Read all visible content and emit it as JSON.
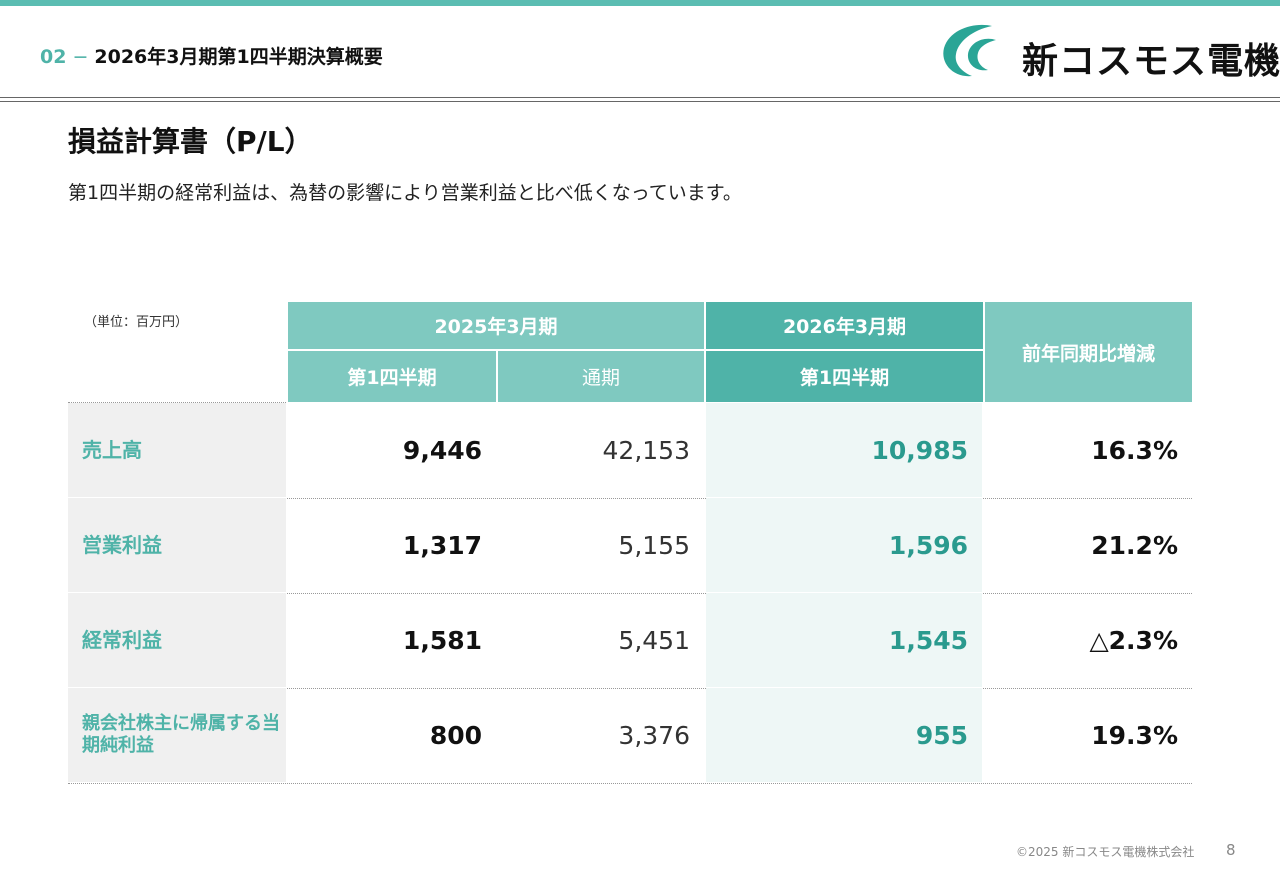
{
  "header": {
    "section_number": "02",
    "section_title": "2026年3月期第1四半期決算概要",
    "company_name": "新コスモス電機",
    "accent_color": "#4fb3a8"
  },
  "content": {
    "title": "損益計算書（P/L）",
    "summary": "第1四半期の経常利益は、為替の影響により営業利益と比べ低くなっています。",
    "unit": "（単位：百万円）"
  },
  "table": {
    "group_fy2025": "2025年3月期",
    "group_fy2026": "2026年3月期",
    "col_change": "前年同期比増減",
    "col_q1_2025": "第1四半期",
    "col_full_2025": "通期",
    "col_q1_2026": "第1四半期",
    "rows": [
      {
        "label": "売上高",
        "q1_2025": "9,446",
        "full_2025": "42,153",
        "q1_2026": "10,985",
        "change": "16.3%"
      },
      {
        "label": "営業利益",
        "q1_2025": "1,317",
        "full_2025": "5,155",
        "q1_2026": "1,596",
        "change": "21.2%"
      },
      {
        "label": "経常利益",
        "q1_2025": "1,581",
        "full_2025": "5,451",
        "q1_2026": "1,545",
        "change": "△2.3%"
      },
      {
        "label": "親会社株主に帰属する当期純利益",
        "q1_2025": "800",
        "full_2025": "3,376",
        "q1_2026": "955",
        "change": "19.3%"
      }
    ]
  },
  "footer": {
    "copyright": "©2025 新コスモス電機株式会社",
    "page_number": "8"
  }
}
